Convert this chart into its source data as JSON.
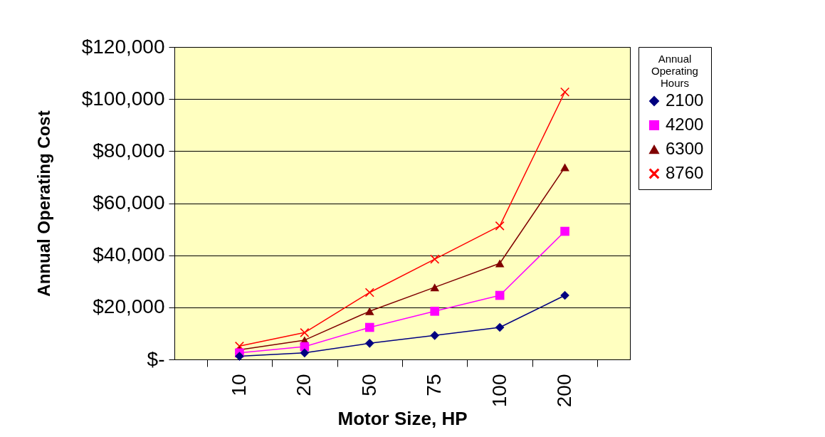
{
  "chart_data": {
    "type": "line",
    "xlabel": "Motor Size, HP",
    "ylabel": "Annual Operating Cost",
    "legend_title": "Annual Operating Hours",
    "categories": [
      "10",
      "20",
      "50",
      "75",
      "100",
      "200"
    ],
    "series": [
      {
        "name": "2100",
        "color": "#000080",
        "marker": "diamond",
        "values": [
          1200,
          2500,
          6200,
          9200,
          12300,
          24600
        ]
      },
      {
        "name": "4200",
        "color": "#ff00ff",
        "marker": "square",
        "values": [
          2500,
          4900,
          12300,
          18500,
          24600,
          49200
        ]
      },
      {
        "name": "6300",
        "color": "#800000",
        "marker": "triangle",
        "values": [
          3700,
          7400,
          18500,
          27700,
          36900,
          73800
        ]
      },
      {
        "name": "8760",
        "color": "#ff0000",
        "marker": "cross",
        "values": [
          5100,
          10300,
          25700,
          38500,
          51300,
          102700
        ]
      }
    ],
    "ylim": [
      0,
      120000
    ],
    "yticks": [
      {
        "value": 0,
        "label": "$-"
      },
      {
        "value": 20000,
        "label": "$20,000"
      },
      {
        "value": 40000,
        "label": "$40,000"
      },
      {
        "value": 60000,
        "label": "$60,000"
      },
      {
        "value": 80000,
        "label": "$80,000"
      },
      {
        "value": 100000,
        "label": "$100,000"
      },
      {
        "value": 120000,
        "label": "$120,000"
      }
    ],
    "grid": "y",
    "legend": "right"
  }
}
